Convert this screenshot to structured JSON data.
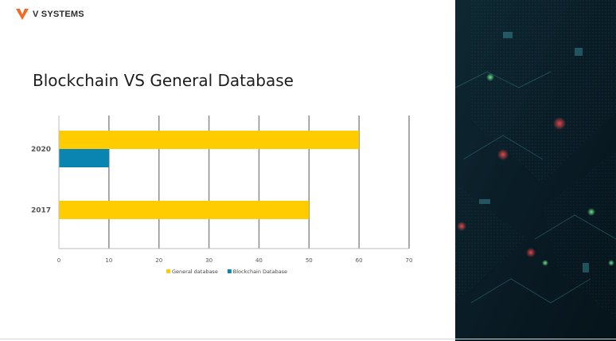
{
  "brand": {
    "name": "V SYSTEMS",
    "accent": "#f26a21"
  },
  "slide": {
    "title": "Blockchain VS General Database"
  },
  "chart_data": {
    "type": "bar",
    "orientation": "horizontal",
    "categories": [
      "2020",
      "2017"
    ],
    "series": [
      {
        "name": "General database",
        "values": [
          60,
          50
        ],
        "color": "#ffcc00"
      },
      {
        "name": "Blockchain Database",
        "values": [
          10,
          null
        ],
        "color": "#0a84b0"
      }
    ],
    "xlim": [
      0,
      70
    ],
    "xticks": [
      "0",
      "10",
      "20",
      "30",
      "40",
      "50",
      "60",
      "70"
    ],
    "grid": "vertical",
    "legend": "bottom"
  },
  "background": {
    "panel_color": "#0b1f2a",
    "description_icon": "circuit-board-image"
  }
}
